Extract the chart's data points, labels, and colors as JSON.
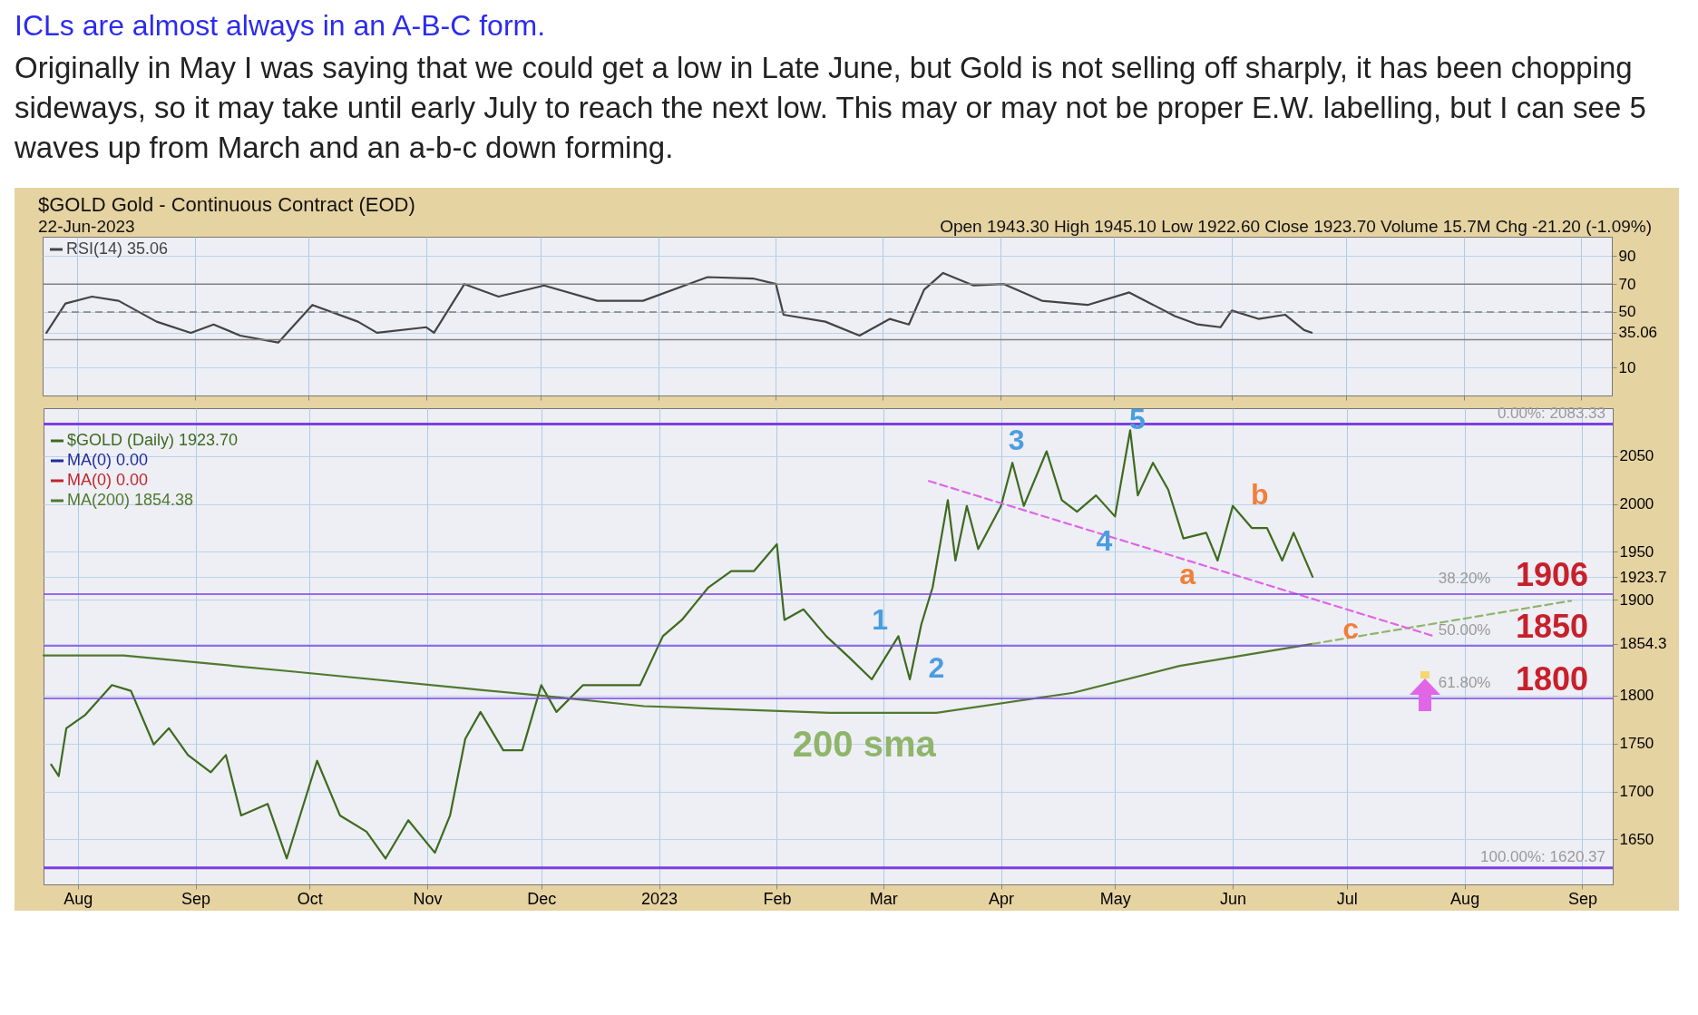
{
  "chart_data": [
    {
      "type": "line",
      "title": "ICLs are  almost always in an A-B-C form.",
      "subtitle": "Originally in May I was saying that we could get a low in Late June, but Gold is not selling off sharply, it has been chopping sideways, so it may take until early July to reach the next low. This may or may not be proper E.W. labelling, but I can see 5 waves up from March and an a-b-c down forming.",
      "annotations": [
        "$GOLD Gold - Continuous Contract (EOD)",
        "22-Jun-2023",
        "Open 1943.30 High 1945.10 Low 1922.60 Close 1923.70 Volume 15.7M Chg -21.20 (-1.09%)"
      ],
      "xlim": [
        "2022-07-23",
        "2023-09-09"
      ],
      "xticks": [
        {
          "value": "2022-08-01",
          "label": null
        },
        {
          "value": "2022-09-01",
          "label": null
        },
        {
          "value": "2022-10-01",
          "label": null
        },
        {
          "value": "2022-11-01",
          "label": null
        },
        {
          "value": "2022-12-01",
          "label": null
        },
        {
          "value": "2023-01-01",
          "label": null
        },
        {
          "value": "2023-02-01",
          "label": null
        },
        {
          "value": "2023-03-01",
          "label": null
        },
        {
          "value": "2023-04-01",
          "label": null
        },
        {
          "value": "2023-05-01",
          "label": null
        },
        {
          "value": "2023-06-01",
          "label": null
        },
        {
          "value": "2023-07-01",
          "label": null
        },
        {
          "value": "2023-08-01",
          "label": null
        },
        {
          "value": "2023-09-01",
          "label": null
        }
      ],
      "ylim": [
        -10,
        104
      ],
      "yticks": [
        10,
        35.06,
        50,
        70,
        90
      ],
      "grid": true,
      "tick_labels": "y",
      "legend": "top left",
      "ref_lines": [
        {
          "axis": "y",
          "value": 70,
          "color": "#808080",
          "line_style": "solid"
        },
        {
          "axis": "y",
          "value": 50,
          "color": "#808080",
          "line_style": "dashed"
        },
        {
          "axis": "y",
          "value": 30,
          "color": "#808080",
          "line_style": "solid"
        }
      ],
      "series": [
        {
          "name": "RSI(14) 35.06",
          "color": "#444444",
          "x": [
            "2022-07-24",
            "2022-07-29",
            "2022-08-05",
            "2022-08-12",
            "2022-08-22",
            "2022-08-31",
            "2022-09-06",
            "2022-09-13",
            "2022-09-23",
            "2022-10-02",
            "2022-10-14",
            "2022-10-19",
            "2022-11-01",
            "2022-11-03",
            "2022-11-11",
            "2022-11-20",
            "2022-12-02",
            "2022-12-16",
            "2022-12-28",
            "2023-01-14",
            "2023-01-26",
            "2023-02-01",
            "2023-02-03",
            "2023-02-14",
            "2023-02-23",
            "2023-03-03",
            "2023-03-08",
            "2023-03-12",
            "2023-03-17",
            "2023-03-25",
            "2023-04-02",
            "2023-04-12",
            "2023-04-24",
            "2023-05-05",
            "2023-05-17",
            "2023-05-23",
            "2023-05-29",
            "2023-06-01",
            "2023-06-08",
            "2023-06-15",
            "2023-06-20",
            "2023-06-22"
          ],
          "values": [
            35,
            56,
            61,
            58,
            43,
            35,
            41,
            33,
            28,
            55,
            43,
            35,
            39,
            35,
            70,
            61,
            69,
            58,
            58,
            75,
            74,
            70,
            48,
            43,
            33,
            45,
            41,
            66,
            78,
            69,
            70,
            58,
            55,
            64,
            47,
            41,
            39,
            51,
            45,
            48,
            37,
            35.06
          ]
        }
      ]
    },
    {
      "type": "line",
      "xlim": [
        "2022-07-23",
        "2023-09-09"
      ],
      "xticks": [
        {
          "value": "2022-08-01",
          "label": "Aug"
        },
        {
          "value": "2022-09-01",
          "label": "Sep"
        },
        {
          "value": "2022-10-01",
          "label": "Oct"
        },
        {
          "value": "2022-11-01",
          "label": "Nov"
        },
        {
          "value": "2022-12-01",
          "label": "Dec"
        },
        {
          "value": "2023-01-01",
          "label": "2023"
        },
        {
          "value": "2023-02-01",
          "label": "Feb"
        },
        {
          "value": "2023-03-01",
          "label": "Mar"
        },
        {
          "value": "2023-04-01",
          "label": "Apr"
        },
        {
          "value": "2023-05-01",
          "label": "May"
        },
        {
          "value": "2023-06-01",
          "label": "Jun"
        },
        {
          "value": "2023-07-01",
          "label": "Jul"
        },
        {
          "value": "2023-08-01",
          "label": "Aug"
        },
        {
          "value": "2023-09-01",
          "label": "Sep"
        }
      ],
      "ylim": [
        1603,
        2100
      ],
      "yticks": [
        1650,
        1700,
        1750,
        1800,
        1854.3,
        1900,
        1923.7,
        1950,
        2000,
        2050
      ],
      "grid": true,
      "legend": "top left",
      "ref_lines": [
        {
          "axis": "y",
          "value": 2083.33,
          "label": "0.00%: 2083.33",
          "color": "#7b3fe4"
        },
        {
          "axis": "y",
          "value": 1906,
          "color": "#7b3fe4"
        },
        {
          "axis": "y",
          "value": 1852,
          "color": "#7b3fe4"
        },
        {
          "axis": "y",
          "value": 1797,
          "color": "#7b3fe4"
        },
        {
          "axis": "y",
          "value": 1620.37,
          "label": "100.00%: 1620.37",
          "color": "#7b3fe4"
        }
      ],
      "annotations": [
        "1",
        "2",
        "3",
        "4",
        "5",
        "a",
        "b",
        "c",
        "200 sma",
        {
          "text": "1906",
          "x": "2023-08-24",
          "y": 1906
        },
        {
          "text": "1850",
          "x": "2023-08-24",
          "y": 1852
        },
        {
          "text": "1800",
          "x": "2023-08-24",
          "y": 1797
        },
        {
          "text": "38.20%",
          "x": "2023-08-01",
          "y": 1906
        },
        {
          "text": "50.00%",
          "x": "2023-08-01",
          "y": 1852
        },
        {
          "text": "61.80%",
          "x": "2023-08-01",
          "y": 1797
        }
      ],
      "series": [
        {
          "name": "$GOLD (Daily) 1923.70",
          "color": "#3d6b1e",
          "x": [
            "2022-07-25",
            "2022-07-27",
            "2022-07-29",
            "2022-08-03",
            "2022-08-10",
            "2022-08-15",
            "2022-08-21",
            "2022-08-25",
            "2022-08-30",
            "2022-09-05",
            "2022-09-09",
            "2022-09-13",
            "2022-09-20",
            "2022-09-25",
            "2022-10-03",
            "2022-10-09",
            "2022-10-16",
            "2022-10-21",
            "2022-10-27",
            "2022-11-03",
            "2022-11-07",
            "2022-11-11",
            "2022-11-15",
            "2022-11-21",
            "2022-11-26",
            "2022-12-01",
            "2022-12-05",
            "2022-12-12",
            "2022-12-21",
            "2022-12-27",
            "2023-01-02",
            "2023-01-07",
            "2023-01-14",
            "2023-01-20",
            "2023-01-26",
            "2023-02-01",
            "2023-02-03",
            "2023-02-08",
            "2023-02-14",
            "2023-02-20",
            "2023-02-26",
            "2023-03-05",
            "2023-03-08",
            "2023-03-11",
            "2023-03-14",
            "2023-03-18",
            "2023-03-20",
            "2023-03-23",
            "2023-03-26",
            "2023-04-01",
            "2023-04-04",
            "2023-04-07",
            "2023-04-13",
            "2023-04-17",
            "2023-04-21",
            "2023-04-26",
            "2023-05-01",
            "2023-05-05",
            "2023-05-07",
            "2023-05-11",
            "2023-05-15",
            "2023-05-19",
            "2023-05-25",
            "2023-05-28",
            "2023-06-01",
            "2023-06-06",
            "2023-06-10",
            "2023-06-14",
            "2023-06-17",
            "2023-06-22"
          ],
          "values": [
            1728,
            1716,
            1766,
            1780,
            1811,
            1805,
            1749,
            1766,
            1738,
            1720,
            1738,
            1675,
            1687,
            1630,
            1732,
            1675,
            1658,
            1630,
            1670,
            1636,
            1675,
            1755,
            1783,
            1743,
            1743,
            1811,
            1783,
            1811,
            1811,
            1811,
            1862,
            1879,
            1913,
            1930,
            1930,
            1958,
            1879,
            1890,
            1862,
            1840,
            1817,
            1862,
            1817,
            1874,
            1913,
            2004,
            1941,
            1998,
            1953,
            1998,
            2043,
            1998,
            2055,
            2004,
            1992,
            2009,
            1987,
            2077,
            2009,
            2043,
            2015,
            1964,
            1970,
            1941,
            1998,
            1975,
            1975,
            1941,
            1970,
            1924
          ]
        },
        {
          "name": "MA(0) 0.00",
          "color": "#1f2d9e"
        },
        {
          "name": "MA(0) 0.00",
          "color": "#c0262b"
        },
        {
          "name": "MA(200) 1854.38",
          "color": "#4f7a2e",
          "x": [
            "2022-07-23",
            "2022-08-13",
            "2022-09-27",
            "2022-11-15",
            "2022-12-01",
            "2022-12-28",
            "2023-02-15",
            "2023-03-15",
            "2023-04-20",
            "2023-05-18",
            "2023-06-22"
          ],
          "values": [
            1842,
            1842,
            1825,
            1806,
            1800,
            1789,
            1782,
            1782,
            1803,
            1831,
            1854
          ]
        },
        {
          "color": "#8fb56a",
          "line_style": "dashed",
          "x": [
            "2023-06-22",
            "2023-08-29"
          ],
          "values": [
            1854,
            1899
          ]
        },
        {
          "color": "#e066e6",
          "line_style": "dashed",
          "x": [
            "2023-03-13",
            "2023-07-24"
          ],
          "values": [
            2024,
            1862
          ]
        }
      ]
    }
  ]
}
